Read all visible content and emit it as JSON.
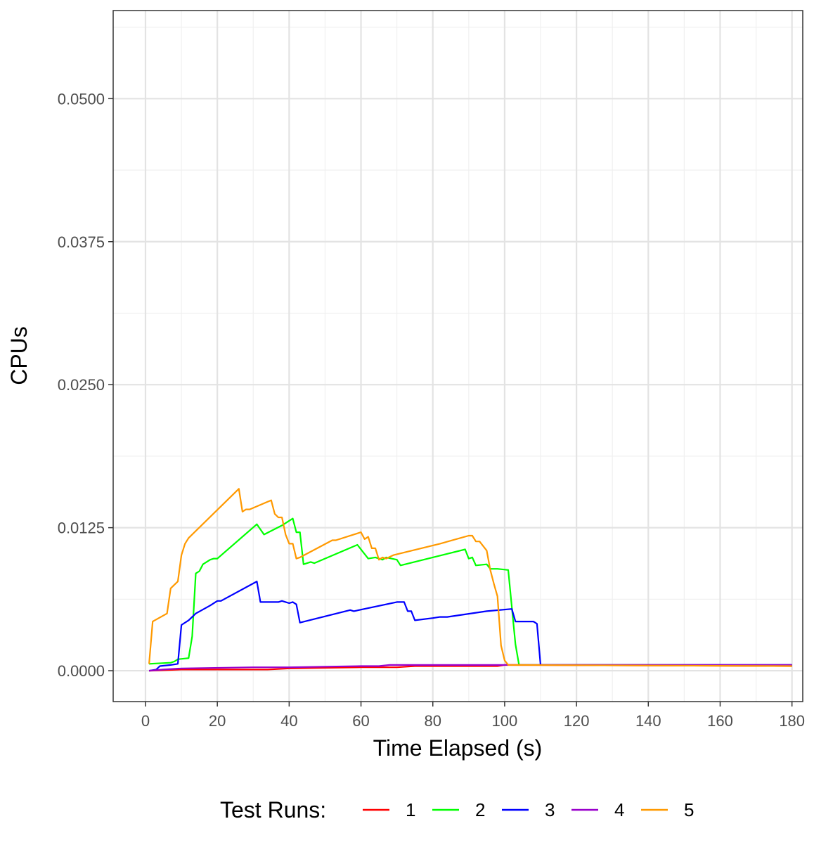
{
  "chart_data": {
    "type": "line",
    "xlabel": "Time Elapsed (s)",
    "ylabel": "CPUs",
    "xlim": [
      -9,
      183
    ],
    "ylim": [
      -0.0027,
      0.0577
    ],
    "x_ticks": [
      0,
      20,
      40,
      60,
      80,
      100,
      120,
      140,
      160,
      180
    ],
    "x_tick_labels": [
      "0",
      "20",
      "40",
      "60",
      "80",
      "100",
      "120",
      "140",
      "160",
      "180"
    ],
    "y_ticks": [
      0,
      0.0125,
      0.025,
      0.0375,
      0.05
    ],
    "y_tick_labels": [
      "0.0000",
      "0.0125",
      "0.0250",
      "0.0375",
      "0.0500"
    ],
    "grid": true,
    "legend": {
      "title": "Test Runs:",
      "position": "bottom",
      "labels": [
        "1",
        "2",
        "3",
        "4",
        "5"
      ]
    },
    "series": [
      {
        "name": "1",
        "color": "#ff0000",
        "points": [
          [
            1,
            0.0
          ],
          [
            10,
            0.0001
          ],
          [
            30,
            0.0001
          ],
          [
            34,
            0.0001
          ],
          [
            40,
            0.0002
          ],
          [
            60,
            0.0003
          ],
          [
            70,
            0.0003
          ],
          [
            75,
            0.0004
          ],
          [
            98,
            0.0004
          ],
          [
            100,
            0.0005
          ],
          [
            180,
            0.0004
          ]
        ]
      },
      {
        "name": "2",
        "color": "#00ff00",
        "points": [
          [
            1,
            0.0006
          ],
          [
            7,
            0.0007
          ],
          [
            8,
            0.0008
          ],
          [
            9,
            0.001
          ],
          [
            12,
            0.0011
          ],
          [
            13,
            0.003
          ],
          [
            14,
            0.0085
          ],
          [
            15,
            0.0087
          ],
          [
            16,
            0.0093
          ],
          [
            18,
            0.0097
          ],
          [
            19,
            0.0098
          ],
          [
            20,
            0.0098
          ],
          [
            31,
            0.0128
          ],
          [
            33,
            0.0119
          ],
          [
            38,
            0.0127
          ],
          [
            41,
            0.0133
          ],
          [
            42,
            0.0121
          ],
          [
            43,
            0.0121
          ],
          [
            44,
            0.0093
          ],
          [
            46,
            0.0095
          ],
          [
            47,
            0.0094
          ],
          [
            59,
            0.011
          ],
          [
            62,
            0.0098
          ],
          [
            64,
            0.0099
          ],
          [
            66,
            0.0097
          ],
          [
            67,
            0.0099
          ],
          [
            70,
            0.0097
          ],
          [
            71,
            0.0092
          ],
          [
            89,
            0.0106
          ],
          [
            90,
            0.0098
          ],
          [
            91,
            0.0099
          ],
          [
            92,
            0.0092
          ],
          [
            95,
            0.0093
          ],
          [
            96,
            0.0089
          ],
          [
            98,
            0.0089
          ],
          [
            101,
            0.0088
          ],
          [
            103,
            0.0023
          ],
          [
            104,
            0.0005
          ],
          [
            180,
            0.0005
          ]
        ]
      },
      {
        "name": "3",
        "color": "#0000ff",
        "points": [
          [
            1,
            0.0
          ],
          [
            3,
            0.0001
          ],
          [
            4,
            0.0004
          ],
          [
            7,
            0.0005
          ],
          [
            9,
            0.0006
          ],
          [
            10,
            0.004
          ],
          [
            12,
            0.0044
          ],
          [
            14,
            0.005
          ],
          [
            18,
            0.0057
          ],
          [
            20,
            0.0061
          ],
          [
            21,
            0.0061
          ],
          [
            31,
            0.0078
          ],
          [
            32,
            0.006
          ],
          [
            37,
            0.006
          ],
          [
            38,
            0.0061
          ],
          [
            39,
            0.006
          ],
          [
            40,
            0.0059
          ],
          [
            41,
            0.006
          ],
          [
            42,
            0.0058
          ],
          [
            43,
            0.0042
          ],
          [
            57,
            0.0053
          ],
          [
            58,
            0.0052
          ],
          [
            70,
            0.006
          ],
          [
            72,
            0.006
          ],
          [
            73,
            0.0052
          ],
          [
            74,
            0.0052
          ],
          [
            75,
            0.0044
          ],
          [
            80,
            0.0046
          ],
          [
            82,
            0.0047
          ],
          [
            84,
            0.0047
          ],
          [
            95,
            0.0052
          ],
          [
            102,
            0.0054
          ],
          [
            103,
            0.0043
          ],
          [
            106,
            0.0043
          ],
          [
            108,
            0.0043
          ],
          [
            109,
            0.0041
          ],
          [
            110,
            0.0005
          ],
          [
            180,
            0.0005
          ]
        ]
      },
      {
        "name": "4",
        "color": "#9900cc",
        "points": [
          [
            1,
            0.0
          ],
          [
            5,
            0.0001
          ],
          [
            10,
            0.0002
          ],
          [
            30,
            0.0003
          ],
          [
            33,
            0.0003
          ],
          [
            40,
            0.0003
          ],
          [
            60,
            0.0004
          ],
          [
            65,
            0.0004
          ],
          [
            68,
            0.0005
          ],
          [
            96,
            0.0005
          ],
          [
            99,
            0.0005
          ],
          [
            100,
            0.0005
          ],
          [
            180,
            0.0005
          ]
        ]
      },
      {
        "name": "5",
        "color": "#ff9900",
        "points": [
          [
            1,
            0.0006
          ],
          [
            2,
            0.0043
          ],
          [
            6,
            0.005
          ],
          [
            7,
            0.0072
          ],
          [
            9,
            0.0078
          ],
          [
            10,
            0.0101
          ],
          [
            11,
            0.0111
          ],
          [
            12,
            0.0116
          ],
          [
            26,
            0.0159
          ],
          [
            27,
            0.0139
          ],
          [
            28,
            0.0141
          ],
          [
            29,
            0.0141
          ],
          [
            35,
            0.0149
          ],
          [
            36,
            0.0137
          ],
          [
            37,
            0.0134
          ],
          [
            38,
            0.0134
          ],
          [
            39,
            0.0119
          ],
          [
            40,
            0.0111
          ],
          [
            41,
            0.0111
          ],
          [
            42,
            0.0098
          ],
          [
            43,
            0.0099
          ],
          [
            52,
            0.0114
          ],
          [
            53,
            0.0114
          ],
          [
            60,
            0.0121
          ],
          [
            61,
            0.0115
          ],
          [
            62,
            0.0117
          ],
          [
            63,
            0.0107
          ],
          [
            64,
            0.0107
          ],
          [
            65,
            0.0097
          ],
          [
            66,
            0.0099
          ],
          [
            67,
            0.0098
          ],
          [
            69,
            0.0101
          ],
          [
            82,
            0.0111
          ],
          [
            90,
            0.0118
          ],
          [
            91,
            0.0118
          ],
          [
            92,
            0.0113
          ],
          [
            93,
            0.0113
          ],
          [
            95,
            0.0105
          ],
          [
            96,
            0.0088
          ],
          [
            97,
            0.0076
          ],
          [
            98,
            0.0065
          ],
          [
            99,
            0.0022
          ],
          [
            100,
            0.0009
          ],
          [
            101,
            0.0005
          ],
          [
            180,
            0.0004
          ]
        ]
      }
    ]
  }
}
